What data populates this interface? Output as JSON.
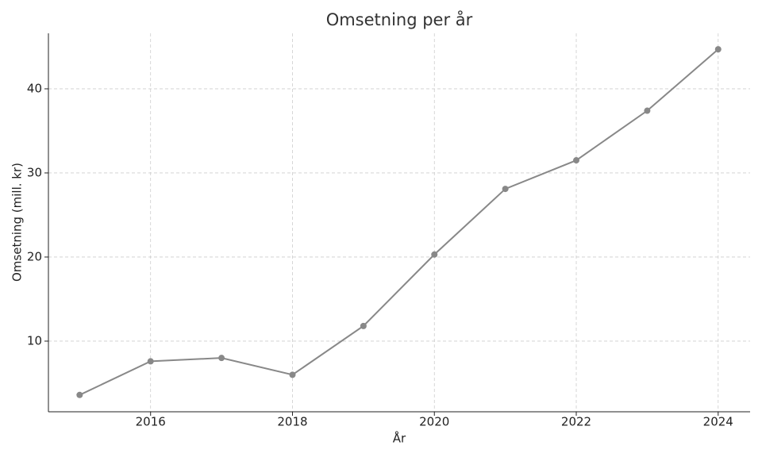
{
  "chart_data": {
    "type": "line",
    "title": "Omsetning per år",
    "xlabel": "År",
    "ylabel": "Omsetning (mill. kr)",
    "x": [
      2015,
      2016,
      2017,
      2018,
      2019,
      2020,
      2021,
      2022,
      2023,
      2024
    ],
    "series": [
      {
        "color": "#888888",
        "values": [
          3.6,
          7.6,
          8.0,
          6.0,
          11.8,
          20.3,
          28.1,
          31.5,
          37.4,
          44.7
        ]
      }
    ],
    "xlim": [
      2014.56,
      2024.45
    ],
    "xticks": [
      2016,
      2018,
      2020,
      2022,
      2024
    ],
    "ylim": [
      1.6,
      46.6
    ],
    "yticks": [
      10,
      20,
      30,
      40
    ],
    "grid": true
  }
}
